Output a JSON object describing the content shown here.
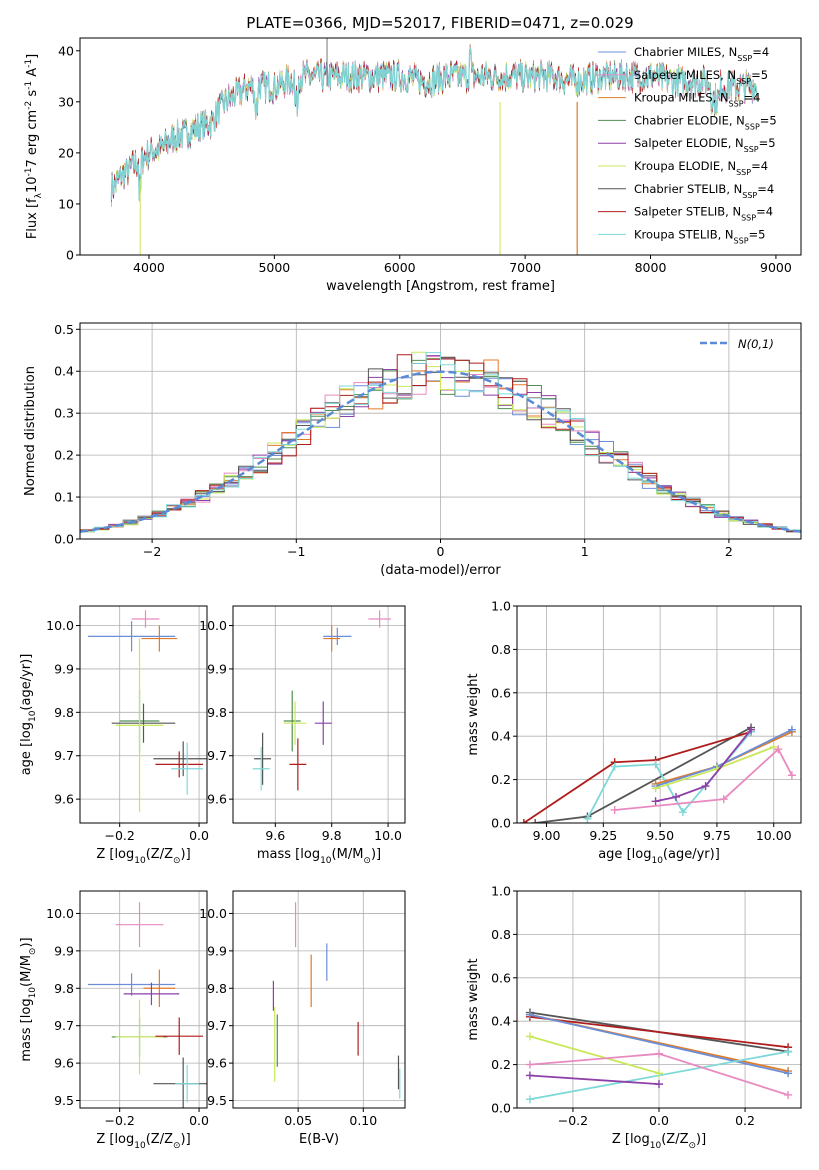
{
  "figure": {
    "title": "PLATE=0366, MJD=52017, FIBERID=0471, z=0.029"
  },
  "palette": {
    "blue": "#6a8fd8",
    "orange": "#e07b2a",
    "green": "#4f8f4f",
    "pink": "#e88ac0",
    "purple": "#8e3fa8",
    "yellowgreen": "#c8e85a",
    "darkgray": "#555555",
    "darkred": "#b01c1c",
    "cyan": "#7fd8d8",
    "grid": "#b0b0b0",
    "normal_curve": "#5b8ad6"
  },
  "chart_data": [
    {
      "id": "spectrum",
      "type": "line",
      "xlabel": "wavelength [Angstrom, rest frame]",
      "ylabel": "Flux [f_λ10^-17 erg cm^-2 s^-1 A^-1]",
      "xlim": [
        3450,
        9200
      ],
      "ylim": [
        0,
        42.5
      ],
      "xticks": [
        4000,
        5000,
        6000,
        7000,
        8000,
        9000
      ],
      "yticks": [
        0,
        10,
        20,
        30,
        40
      ],
      "grid": false,
      "legend": "upper-right",
      "series": [
        {
          "name": "Chabrier MILES, N_SSP=4",
          "color": "blue"
        },
        {
          "name": "Salpeter MILES, N_SSP=5",
          "color": "pink"
        },
        {
          "name": "Kroupa MILES, N_SSP=4",
          "color": "orange"
        },
        {
          "name": "Chabrier ELODIE, N_SSP=5",
          "color": "green"
        },
        {
          "name": "Salpeter ELODIE, N_SSP=5",
          "color": "purple"
        },
        {
          "name": "Kroupa ELODIE, N_SSP=4",
          "color": "yellowgreen"
        },
        {
          "name": "Chabrier STELIB, N_SSP=4",
          "color": "darkgray"
        },
        {
          "name": "Salpeter STELIB, N_SSP=4",
          "color": "darkred"
        },
        {
          "name": "Kroupa STELIB, N_SSP=5",
          "color": "cyan"
        }
      ],
      "continuum": {
        "x": [
          3700,
          3800,
          3900,
          4000,
          4100,
          4200,
          4300,
          4400,
          4500,
          4600,
          4800,
          5000,
          5200,
          5400,
          5600,
          5800,
          6000,
          6200,
          6400,
          6600,
          6800,
          7000,
          7200,
          7400,
          7600,
          7800,
          8000,
          8200,
          8400,
          8600,
          8800
        ],
        "y": [
          13,
          16,
          18,
          20,
          21,
          23,
          24,
          25,
          26,
          30,
          33,
          33,
          35,
          35,
          35,
          35,
          35,
          34,
          35,
          35,
          35,
          35,
          35,
          34,
          35,
          35,
          35,
          34,
          34,
          33,
          33
        ]
      }
    },
    {
      "id": "residuals",
      "type": "bar",
      "xlabel": "(data-model)/error",
      "ylabel": "Normed distribution",
      "xlim": [
        -2.5,
        2.5
      ],
      "ylim": [
        0,
        0.515
      ],
      "xticks": [
        -2,
        -1,
        0,
        1,
        2
      ],
      "yticks": [
        0.0,
        0.1,
        0.2,
        0.3,
        0.4,
        0.5
      ],
      "grid": true,
      "legend": "upper-right",
      "legend_label": "N(0,1)",
      "bin_width": 0.1,
      "bin_start": -2.5
    },
    {
      "id": "Z-age",
      "type": "scatter",
      "xlabel": "Z [log10(Z/Z_sun)]",
      "ylabel": "age  [log10(age/yr)]",
      "xlim": [
        -0.3,
        0.02
      ],
      "ylim": [
        9.545,
        10.045
      ],
      "xticks": [
        -0.2,
        0.0
      ],
      "yticks": [
        9.6,
        9.7,
        9.8,
        9.9,
        10.0
      ],
      "grid": true,
      "points": [
        {
          "x": -0.135,
          "y": 10.015,
          "xerr": 0.035,
          "yerr": 0.02,
          "color": "pink"
        },
        {
          "x": -0.17,
          "y": 9.975,
          "xerr": 0.11,
          "yerr": 0.035,
          "color": "blue"
        },
        {
          "x": -0.1,
          "y": 9.97,
          "xerr": 0.045,
          "yerr": 0.03,
          "color": "orange"
        },
        {
          "x": -0.15,
          "y": 9.78,
          "xerr": 0.05,
          "yerr": 0.07,
          "color": "green"
        },
        {
          "x": -0.14,
          "y": 9.775,
          "xerr": 0.08,
          "yerr": 0.045,
          "color": "darkgray"
        },
        {
          "x": -0.15,
          "y": 9.77,
          "xerr": 0.06,
          "yerr": 0.2,
          "color": "yellowgreen"
        },
        {
          "x": -0.04,
          "y": 9.693,
          "xerr": 0.075,
          "yerr": 0.04,
          "color": "darkgray"
        },
        {
          "x": -0.05,
          "y": 9.68,
          "xerr": 0.06,
          "yerr": 0.03,
          "color": "darkred"
        },
        {
          "x": -0.03,
          "y": 9.67,
          "xerr": 0.04,
          "yerr": 0.06,
          "color": "cyan"
        }
      ]
    },
    {
      "id": "mass-age",
      "type": "scatter",
      "xlabel": "mass [log10(M/M_sun)]",
      "ylabel": "",
      "xlim": [
        9.45,
        10.06
      ],
      "ylim": [
        9.545,
        10.045
      ],
      "xticks": [
        9.6,
        9.8,
        10.0
      ],
      "yticks": [
        9.6,
        9.7,
        9.8,
        9.9,
        10.0
      ],
      "grid": true,
      "points": [
        {
          "x": 9.97,
          "y": 10.015,
          "xerr": 0.04,
          "yerr": 0.02,
          "color": "pink"
        },
        {
          "x": 9.82,
          "y": 9.975,
          "xerr": 0.05,
          "yerr": 0.02,
          "color": "blue"
        },
        {
          "x": 9.8,
          "y": 9.97,
          "xerr": 0.03,
          "yerr": 0.03,
          "color": "orange"
        },
        {
          "x": 9.66,
          "y": 9.78,
          "xerr": 0.03,
          "yerr": 0.07,
          "color": "green"
        },
        {
          "x": 9.67,
          "y": 9.775,
          "xerr": 0.04,
          "yerr": 0.05,
          "color": "yellowgreen"
        },
        {
          "x": 9.77,
          "y": 9.775,
          "xerr": 0.03,
          "yerr": 0.05,
          "color": "purple"
        },
        {
          "x": 9.555,
          "y": 9.693,
          "xerr": 0.03,
          "yerr": 0.06,
          "color": "darkgray"
        },
        {
          "x": 9.68,
          "y": 9.68,
          "xerr": 0.03,
          "yerr": 0.06,
          "color": "darkred"
        },
        {
          "x": 9.55,
          "y": 9.67,
          "xerr": 0.03,
          "yerr": 0.05,
          "color": "cyan"
        }
      ]
    },
    {
      "id": "age-weight",
      "type": "line",
      "xlabel": "age  [log10(age/yr)]",
      "ylabel": "mass weight",
      "xlim": [
        8.87,
        10.12
      ],
      "ylim": [
        0,
        1.0
      ],
      "xticks": [
        9.0,
        9.25,
        9.5,
        9.75,
        10.0
      ],
      "yticks": [
        0.0,
        0.2,
        0.4,
        0.6,
        0.8,
        1.0
      ],
      "grid": true,
      "series": [
        {
          "color": "darkgray",
          "x": [
            8.95,
            9.18,
            9.9
          ],
          "y": [
            0.0,
            0.03,
            0.44
          ]
        },
        {
          "color": "darkred",
          "x": [
            8.9,
            9.3,
            9.48,
            9.9
          ],
          "y": [
            0.0,
            0.28,
            0.29,
            0.42
          ]
        },
        {
          "color": "cyan",
          "x": [
            9.18,
            9.3,
            9.48,
            9.6,
            9.9
          ],
          "y": [
            0.02,
            0.26,
            0.27,
            0.05,
            0.42
          ]
        },
        {
          "color": "orange",
          "x": [
            9.48,
            9.75,
            10.08
          ],
          "y": [
            0.18,
            0.26,
            0.42
          ]
        },
        {
          "color": "blue",
          "x": [
            9.48,
            9.75,
            10.08
          ],
          "y": [
            0.17,
            0.26,
            0.43
          ]
        },
        {
          "color": "yellowgreen",
          "x": [
            9.48,
            9.75,
            10.0
          ],
          "y": [
            0.16,
            0.25,
            0.35
          ]
        },
        {
          "color": "purple",
          "x": [
            9.48,
            9.57,
            9.7,
            9.9
          ],
          "y": [
            0.1,
            0.12,
            0.17,
            0.43
          ]
        },
        {
          "color": "pink",
          "x": [
            9.3,
            9.78,
            10.02,
            10.08
          ],
          "y": [
            0.06,
            0.11,
            0.34,
            0.22
          ]
        }
      ]
    },
    {
      "id": "Z-mass",
      "type": "scatter",
      "xlabel": "Z [log10(Z/Z_sun)]",
      "ylabel": "mass [log10(M/M_sun)]",
      "xlim": [
        -0.3,
        0.02
      ],
      "ylim": [
        9.48,
        10.06
      ],
      "xticks": [
        -0.2,
        0.0
      ],
      "yticks": [
        9.5,
        9.6,
        9.7,
        9.8,
        9.9,
        10.0
      ],
      "grid": true,
      "points": [
        {
          "x": -0.15,
          "y": 9.97,
          "xerr": 0.06,
          "yerr": 0.06,
          "color": "pink"
        },
        {
          "x": -0.17,
          "y": 9.81,
          "xerr": 0.11,
          "yerr": 0.03,
          "color": "blue"
        },
        {
          "x": -0.1,
          "y": 9.8,
          "xerr": 0.04,
          "yerr": 0.05,
          "color": "orange"
        },
        {
          "x": -0.12,
          "y": 9.785,
          "xerr": 0.07,
          "yerr": 0.03,
          "color": "purple"
        },
        {
          "x": -0.15,
          "y": 9.67,
          "xerr": 0.07,
          "yerr": 0.05,
          "color": "green"
        },
        {
          "x": -0.15,
          "y": 9.67,
          "xerr": 0.06,
          "yerr": 0.1,
          "color": "yellowgreen"
        },
        {
          "x": -0.05,
          "y": 9.672,
          "xerr": 0.06,
          "yerr": 0.05,
          "color": "darkred"
        },
        {
          "x": -0.04,
          "y": 9.545,
          "xerr": 0.075,
          "yerr": 0.07,
          "color": "darkgray"
        },
        {
          "x": -0.03,
          "y": 9.545,
          "xerr": 0.03,
          "yerr": 0.05,
          "color": "cyan"
        }
      ]
    },
    {
      "id": "ebv-mass",
      "type": "scatter",
      "xlabel": "E(B-V)",
      "ylabel": "",
      "xlim": [
        0.0,
        0.132
      ],
      "ylim": [
        9.48,
        10.06
      ],
      "xticks": [
        0.05,
        0.1
      ],
      "yticks": [
        9.5,
        9.6,
        9.7,
        9.8,
        9.9,
        10.0
      ],
      "grid": true,
      "points": [
        {
          "x": 0.048,
          "y": 9.97,
          "xerr": 0,
          "yerr": 0.06,
          "color": "pink"
        },
        {
          "x": 0.072,
          "y": 9.87,
          "xerr": 0,
          "yerr": 0.05,
          "color": "blue"
        },
        {
          "x": 0.06,
          "y": 9.82,
          "xerr": 0,
          "yerr": 0.07,
          "color": "orange"
        },
        {
          "x": 0.031,
          "y": 9.78,
          "xerr": 0,
          "yerr": 0.04,
          "color": "purple"
        },
        {
          "x": 0.034,
          "y": 9.66,
          "xerr": 0,
          "yerr": 0.07,
          "color": "green"
        },
        {
          "x": 0.032,
          "y": 9.65,
          "xerr": 0,
          "yerr": 0.1,
          "color": "yellowgreen"
        },
        {
          "x": 0.096,
          "y": 9.665,
          "xerr": 0,
          "yerr": 0.045,
          "color": "darkred"
        },
        {
          "x": 0.127,
          "y": 9.575,
          "xerr": 0,
          "yerr": 0.045,
          "color": "darkgray"
        },
        {
          "x": 0.128,
          "y": 9.545,
          "xerr": 0,
          "yerr": 0.04,
          "color": "cyan"
        }
      ]
    },
    {
      "id": "Z-weight",
      "type": "line",
      "xlabel": "Z [log10(Z/Z_sun)]",
      "ylabel": "mass weight",
      "xlim": [
        -0.33,
        0.33
      ],
      "ylim": [
        0,
        1.0
      ],
      "xticks": [
        -0.2,
        0.0,
        0.2
      ],
      "yticks": [
        0.0,
        0.2,
        0.4,
        0.6,
        0.8,
        1.0
      ],
      "grid": true,
      "series": [
        {
          "color": "darkgray",
          "x": [
            -0.3,
            0.3
          ],
          "y": [
            0.44,
            0.26
          ]
        },
        {
          "color": "darkred",
          "x": [
            -0.3,
            0.3
          ],
          "y": [
            0.42,
            0.28
          ]
        },
        {
          "color": "orange",
          "x": [
            -0.3,
            0.3
          ],
          "y": [
            0.43,
            0.17
          ]
        },
        {
          "color": "blue",
          "x": [
            -0.3,
            0.3
          ],
          "y": [
            0.43,
            0.16
          ]
        },
        {
          "color": "cyan",
          "x": [
            -0.3,
            0.3
          ],
          "y": [
            0.04,
            0.26
          ]
        },
        {
          "color": "yellowgreen",
          "x": [
            -0.3,
            0.0
          ],
          "y": [
            0.33,
            0.16
          ]
        },
        {
          "color": "pink",
          "x": [
            -0.3,
            0.0,
            0.3
          ],
          "y": [
            0.2,
            0.25,
            0.06
          ]
        },
        {
          "color": "purple",
          "x": [
            -0.3,
            0.0
          ],
          "y": [
            0.15,
            0.11
          ]
        }
      ]
    }
  ]
}
